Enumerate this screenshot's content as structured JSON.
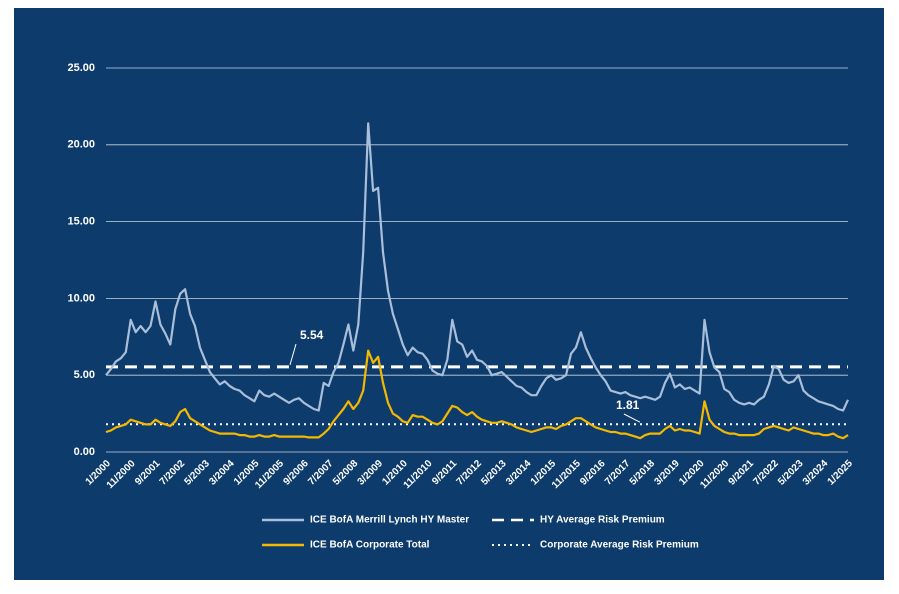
{
  "chart_data": {
    "type": "line",
    "categories": [
      "1/2000",
      null,
      null,
      null,
      null,
      "11/2000",
      null,
      null,
      null,
      null,
      "9/2001",
      null,
      null,
      null,
      null,
      "7/2002",
      null,
      null,
      null,
      null,
      "5/2003",
      null,
      null,
      null,
      null,
      "3/2004",
      null,
      null,
      null,
      null,
      "1/2005",
      null,
      null,
      null,
      null,
      "11/2005",
      null,
      null,
      null,
      null,
      "9/2006",
      null,
      null,
      null,
      null,
      "7/2007",
      null,
      null,
      null,
      null,
      "5/2008",
      null,
      null,
      null,
      null,
      "3/2009",
      null,
      null,
      null,
      null,
      "1/2010",
      null,
      null,
      null,
      null,
      "11/2010",
      null,
      null,
      null,
      null,
      "9/2011",
      null,
      null,
      null,
      null,
      "7/2012",
      null,
      null,
      null,
      null,
      "5/2013",
      null,
      null,
      null,
      null,
      "3/2014",
      null,
      null,
      null,
      null,
      "1/2015",
      null,
      null,
      null,
      null,
      "11/2015",
      null,
      null,
      null,
      null,
      "9/2016",
      null,
      null,
      null,
      null,
      "7/2017",
      null,
      null,
      null,
      null,
      "5/2018",
      null,
      null,
      null,
      null,
      "3/2019",
      null,
      null,
      null,
      null,
      "1/2020",
      null,
      null,
      null,
      null,
      "11/2020",
      null,
      null,
      null,
      null,
      "9/2021",
      null,
      null,
      null,
      null,
      "7/2022",
      null,
      null,
      null,
      null,
      "5/2023",
      null,
      null,
      null,
      null,
      "3/2024",
      null,
      null,
      null,
      null,
      "1/2025"
    ],
    "series": [
      {
        "name": "ICE BofA Merrill Lynch HY Master",
        "color": "#a9bfd9",
        "values": [
          5.0,
          5.4,
          5.9,
          6.1,
          6.5,
          8.6,
          7.8,
          8.2,
          7.8,
          8.2,
          9.8,
          8.3,
          7.7,
          7.0,
          9.3,
          10.3,
          10.6,
          9.0,
          8.2,
          6.8,
          6.0,
          5.2,
          4.8,
          4.4,
          4.6,
          4.3,
          4.1,
          4.0,
          3.7,
          3.5,
          3.3,
          4.0,
          3.7,
          3.6,
          3.8,
          3.6,
          3.4,
          3.2,
          3.4,
          3.5,
          3.2,
          3.0,
          2.8,
          2.7,
          4.5,
          4.3,
          5.2,
          5.8,
          7.0,
          8.3,
          6.6,
          8.3,
          13.0,
          21.4,
          17.0,
          17.2,
          13.0,
          10.5,
          9.0,
          8.0,
          7.0,
          6.3,
          6.8,
          6.5,
          6.4,
          6.0,
          5.3,
          5.1,
          5.0,
          6.0,
          8.6,
          7.2,
          7.0,
          6.2,
          6.6,
          6.0,
          5.9,
          5.6,
          5.0,
          5.1,
          5.2,
          4.9,
          4.6,
          4.3,
          4.2,
          3.9,
          3.7,
          3.7,
          4.3,
          4.8,
          5.0,
          4.7,
          4.8,
          5.0,
          6.4,
          6.8,
          7.8,
          6.8,
          6.1,
          5.5,
          5.0,
          4.6,
          4.0,
          3.9,
          3.8,
          3.9,
          3.7,
          3.6,
          3.5,
          3.6,
          3.5,
          3.4,
          3.6,
          4.5,
          5.1,
          4.2,
          4.4,
          4.1,
          4.2,
          4.0,
          3.8,
          8.6,
          6.5,
          5.5,
          5.2,
          4.1,
          3.9,
          3.4,
          3.2,
          3.1,
          3.2,
          3.1,
          3.4,
          3.6,
          4.4,
          5.6,
          5.4,
          4.7,
          4.5,
          4.6,
          5.0,
          4.0,
          3.7,
          3.5,
          3.3,
          3.2,
          3.1,
          3.0,
          2.8,
          2.7,
          3.4
        ]
      },
      {
        "name": "ICE BofA Corporate Total",
        "color": "#f5b800",
        "values": [
          1.3,
          1.4,
          1.6,
          1.7,
          1.8,
          2.1,
          2.0,
          1.9,
          1.8,
          1.8,
          2.1,
          1.9,
          1.8,
          1.7,
          2.0,
          2.6,
          2.8,
          2.2,
          2.0,
          1.8,
          1.6,
          1.4,
          1.3,
          1.2,
          1.2,
          1.2,
          1.2,
          1.1,
          1.1,
          1.0,
          1.0,
          1.1,
          1.0,
          1.0,
          1.1,
          1.0,
          1.0,
          1.0,
          1.0,
          1.0,
          1.0,
          0.95,
          0.95,
          0.95,
          1.2,
          1.5,
          2.0,
          2.4,
          2.8,
          3.3,
          2.8,
          3.2,
          4.0,
          6.6,
          5.8,
          6.2,
          4.5,
          3.2,
          2.5,
          2.3,
          2.0,
          1.9,
          2.4,
          2.3,
          2.3,
          2.1,
          1.9,
          1.8,
          2.0,
          2.5,
          3.0,
          2.9,
          2.6,
          2.4,
          2.6,
          2.3,
          2.1,
          2.0,
          1.9,
          1.9,
          2.0,
          1.9,
          1.8,
          1.6,
          1.5,
          1.4,
          1.3,
          1.4,
          1.5,
          1.6,
          1.6,
          1.5,
          1.7,
          1.8,
          2.0,
          2.2,
          2.2,
          2.0,
          1.8,
          1.6,
          1.5,
          1.4,
          1.3,
          1.3,
          1.2,
          1.2,
          1.1,
          1.0,
          0.9,
          1.1,
          1.2,
          1.2,
          1.2,
          1.5,
          1.7,
          1.4,
          1.5,
          1.4,
          1.4,
          1.3,
          1.2,
          3.3,
          2.1,
          1.7,
          1.5,
          1.3,
          1.2,
          1.2,
          1.1,
          1.1,
          1.1,
          1.1,
          1.2,
          1.5,
          1.6,
          1.7,
          1.6,
          1.5,
          1.4,
          1.6,
          1.5,
          1.4,
          1.3,
          1.2,
          1.2,
          1.1,
          1.1,
          1.2,
          1.0,
          0.9,
          1.1
        ]
      }
    ],
    "reference_lines": [
      {
        "name": "HY Average Risk Premium",
        "value": 5.54,
        "style": "dashed",
        "color": "#ffffff"
      },
      {
        "name": "Corporate Average Risk Premium",
        "value": 1.81,
        "style": "dotted",
        "color": "#ffffff"
      }
    ],
    "ylim": [
      0,
      25
    ],
    "yticks": [
      {
        "value": 0,
        "label": "0.00"
      },
      {
        "value": 5,
        "label": "5.00"
      },
      {
        "value": 10,
        "label": "10.00"
      },
      {
        "value": 15,
        "label": "15.00"
      },
      {
        "value": 20,
        "label": "20.00"
      },
      {
        "value": 25,
        "label": "25.00"
      }
    ],
    "grid": true,
    "legend": "bottom",
    "background": "#0d3b6c"
  }
}
